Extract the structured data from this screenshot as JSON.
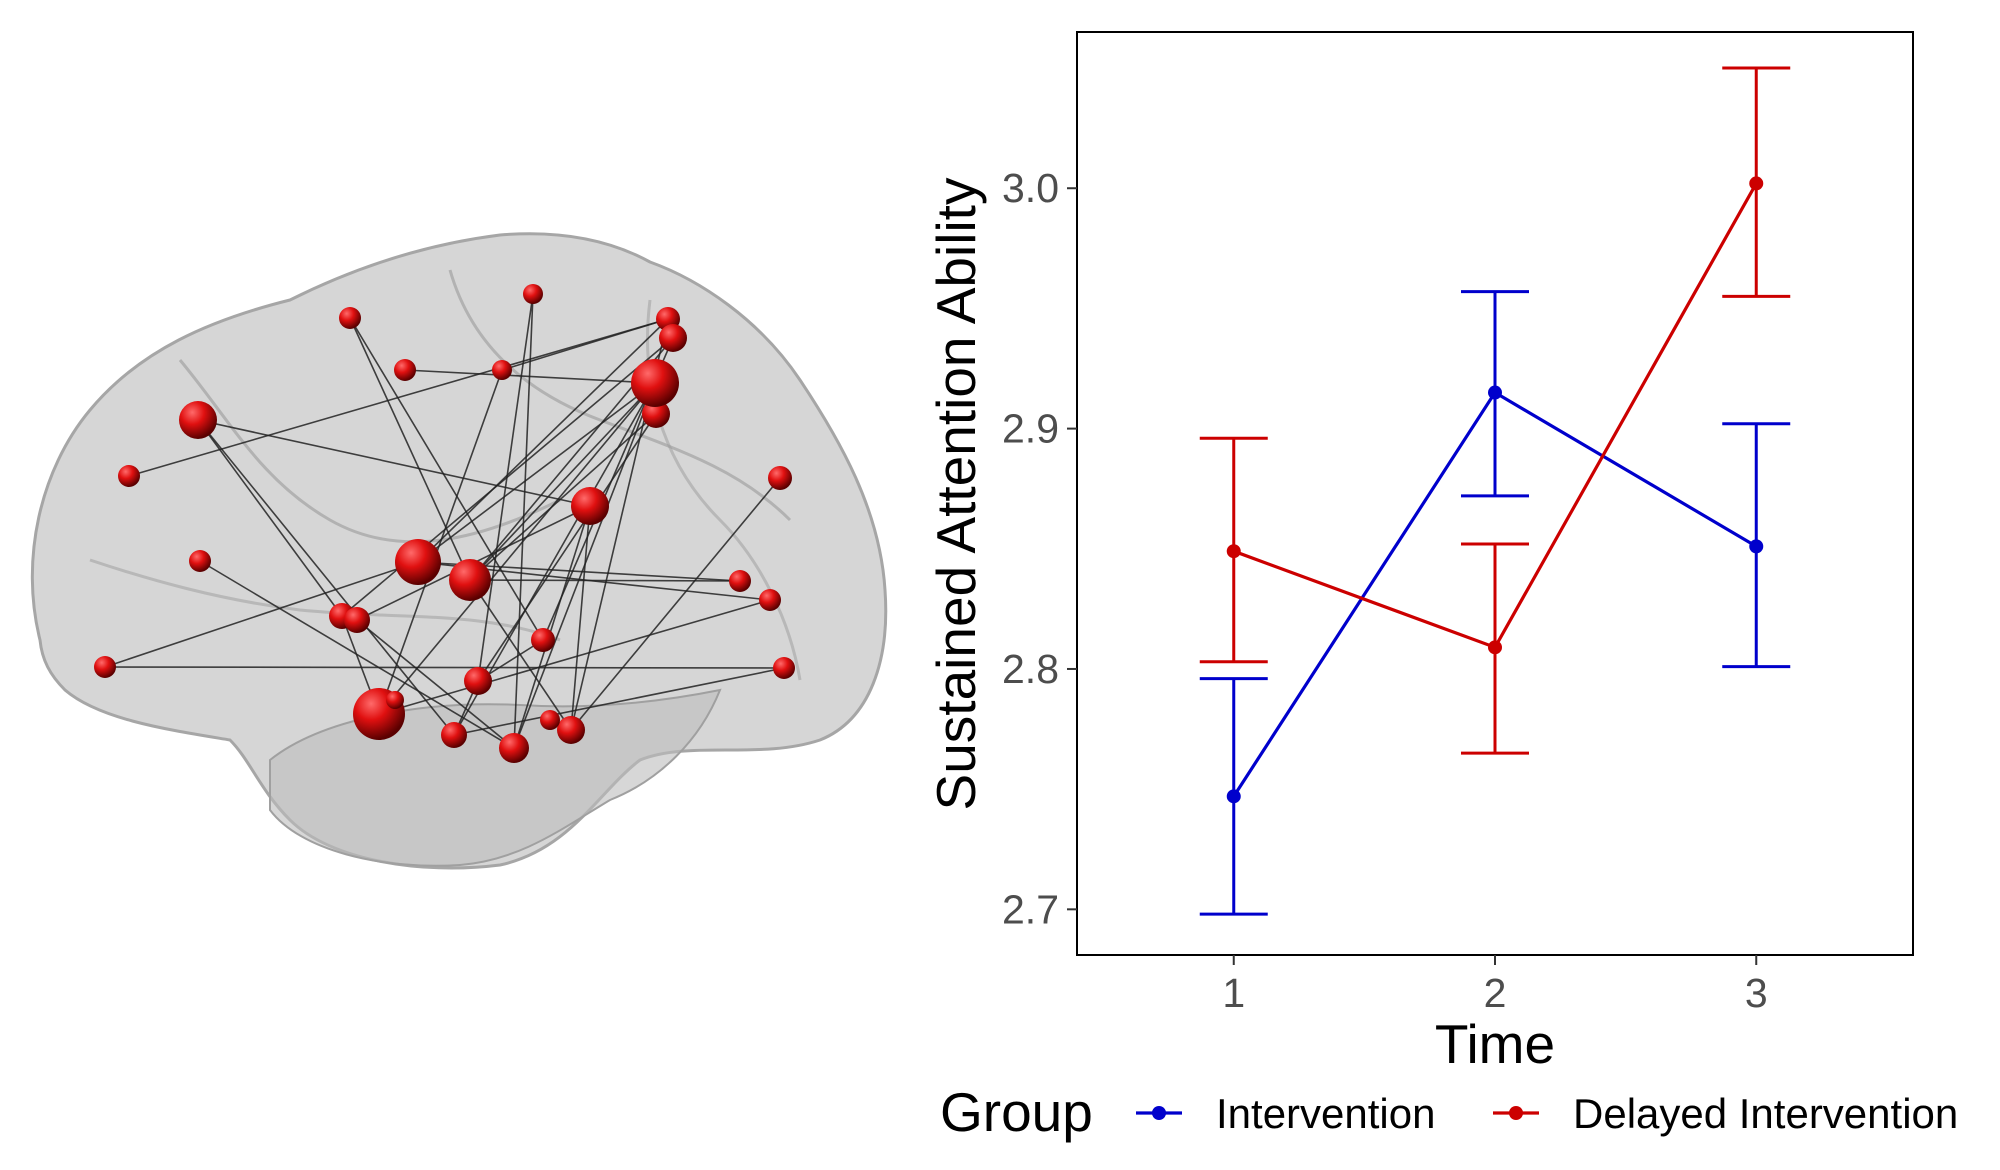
{
  "chart_data": {
    "type": "line",
    "xlabel": "Time",
    "ylabel": "Sustained Attention Ability",
    "x": [
      1,
      2,
      3
    ],
    "xlim": [
      0.4,
      3.6
    ],
    "ylim": [
      2.681,
      3.065
    ],
    "yticks": [
      2.7,
      2.8,
      2.9,
      3.0
    ],
    "ytick_labels": [
      "2.7",
      "2.8",
      "2.9",
      "3.0"
    ],
    "xtick_labels": [
      "1",
      "2",
      "3"
    ],
    "grid": false,
    "legend": {
      "title": "Group",
      "position": "bottom"
    },
    "series": [
      {
        "name": "Intervention",
        "color": "#0000cc",
        "values": [
          2.747,
          2.915,
          2.851
        ],
        "err_low": [
          2.698,
          2.872,
          2.801
        ],
        "err_high": [
          2.796,
          2.957,
          2.902
        ]
      },
      {
        "name": "Delayed Intervention",
        "color": "#cc0000",
        "values": [
          2.849,
          2.809,
          3.002
        ],
        "err_low": [
          2.803,
          2.765,
          2.955
        ],
        "err_high": [
          2.896,
          2.852,
          3.05
        ]
      }
    ]
  },
  "brain": {
    "node_color": "#dd1111",
    "edge_color": "#222222",
    "node_count": 29,
    "edge_count": 40
  }
}
